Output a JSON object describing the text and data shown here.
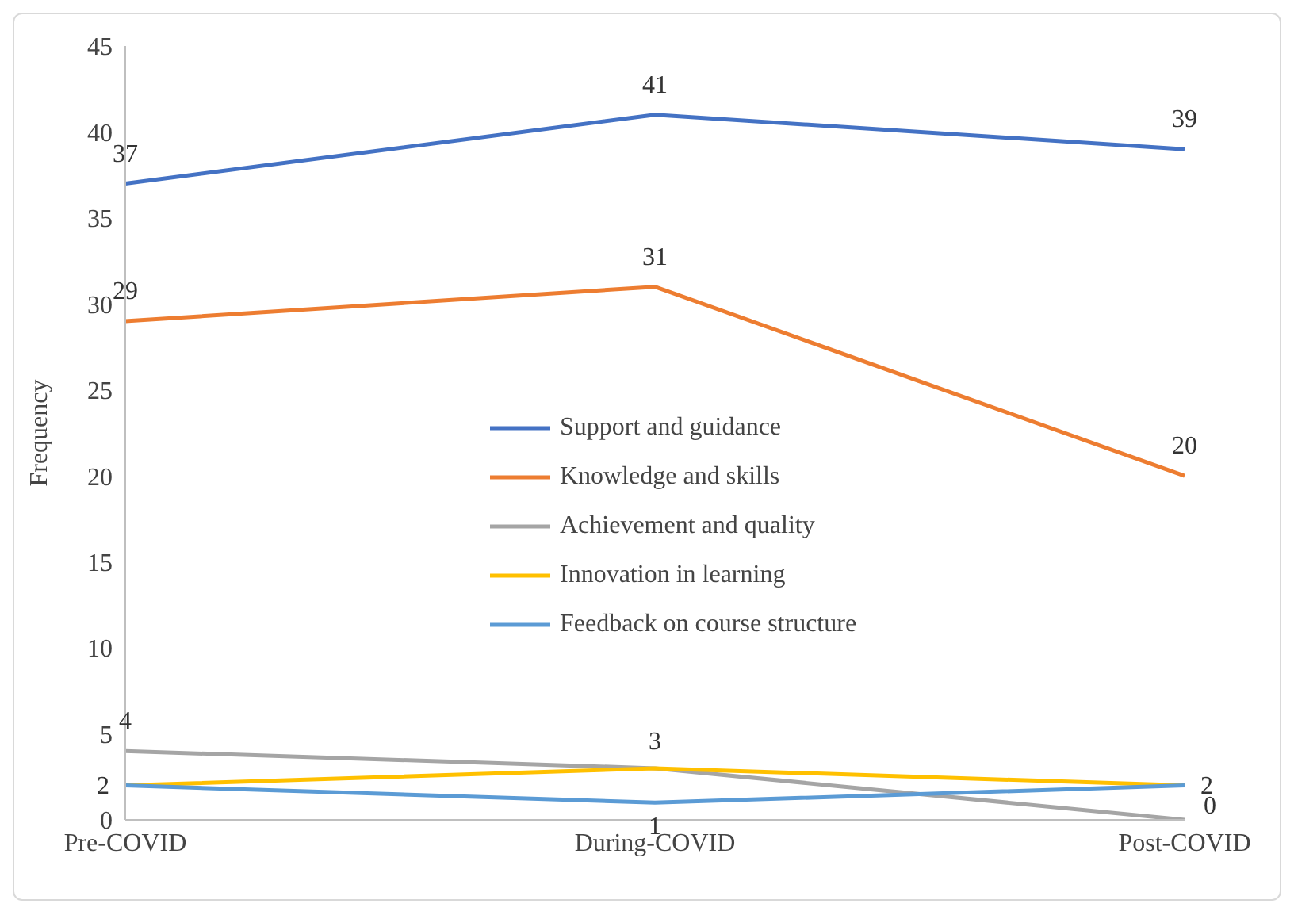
{
  "chart_data": {
    "type": "line",
    "ylabel": "Frequency",
    "categories": [
      "Pre-COVID",
      "During-COVID",
      "Post-COVID"
    ],
    "ylim": [
      0,
      45
    ],
    "yticks": [
      0,
      5,
      10,
      15,
      20,
      25,
      30,
      35,
      40,
      45
    ],
    "grid": false,
    "legend": "center",
    "marker": "none",
    "line_style": "solid",
    "series": [
      {
        "name": "Support and guidance",
        "color": "#4472c4",
        "values": [
          37,
          41,
          39
        ],
        "value_labels": [
          "37",
          "41",
          "39"
        ]
      },
      {
        "name": "Knowledge and skills",
        "color": "#ed7d31",
        "values": [
          29,
          31,
          20
        ],
        "value_labels": [
          "29",
          "31",
          "20"
        ]
      },
      {
        "name": "Achievement and quality",
        "color": "#a5a5a5",
        "values": [
          4,
          3,
          0
        ],
        "value_labels": [
          "4",
          null,
          "0"
        ]
      },
      {
        "name": "Innovation in learning",
        "color": "#ffc000",
        "values": [
          2,
          3,
          2
        ],
        "value_labels": [
          null,
          "3",
          "2"
        ]
      },
      {
        "name": "Feedback on course structure",
        "color": "#5b9bd5",
        "values": [
          2,
          1,
          2
        ],
        "value_labels": [
          "2",
          "1",
          null
        ]
      }
    ]
  }
}
